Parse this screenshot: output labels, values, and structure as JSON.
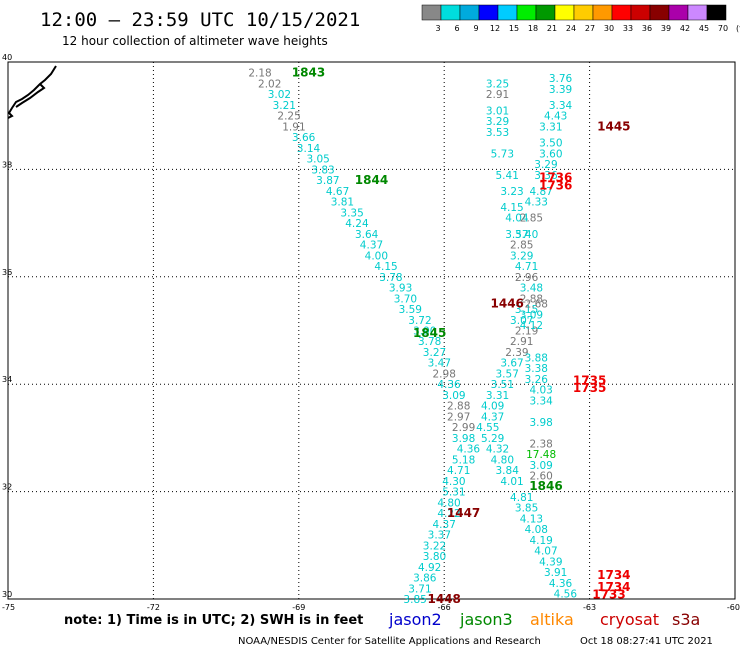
{
  "header": {
    "title": "12:00 — 23:59 UTC 10/15/2021",
    "subtitle": "12 hour collection of altimeter wave heights"
  },
  "footer": {
    "note": "note:  1) Time is in UTC; 2) SWH is in feet",
    "credit": "NOAA/NESDIS Center for Satellite Applications and Research",
    "timestamp": "Oct 18 08:27:41 UTC 2021",
    "satellites": [
      {
        "label": "jason2",
        "color": "#0000cc"
      },
      {
        "label": "jason3",
        "color": "#008800"
      },
      {
        "label": "altika",
        "color": "#ff8800"
      },
      {
        "label": "cryosat",
        "color": "#cc0000"
      },
      {
        "label": "s3a",
        "color": "#880000"
      }
    ]
  },
  "color_scale": {
    "labels": [
      "3",
      "6",
      "9",
      "12",
      "15",
      "18",
      "21",
      "24",
      "27",
      "30",
      "33",
      "36",
      "39",
      "42",
      "45",
      "70",
      "(ft)"
    ],
    "colors": [
      "#888888",
      "#00dddd",
      "#00aadd",
      "#0000ff",
      "#00ccff",
      "#00ee00",
      "#009900",
      "#ffff00",
      "#ffcc00",
      "#ff9900",
      "#ff0000",
      "#cc0000",
      "#880000",
      "#aa00aa",
      "#cc88ff",
      "#000000"
    ]
  },
  "chart_data": {
    "type": "scatter",
    "title": "12:00 — 23:59 UTC 10/15/2021",
    "subtitle": "12 hour collection of altimeter wave heights",
    "xlim": [
      -75,
      -60
    ],
    "ylim": [
      30,
      40
    ],
    "xticks": [
      "-75",
      "-72",
      "-69",
      "-66",
      "-63",
      "-60"
    ],
    "xtick_values": [
      -75,
      -72,
      -69,
      -66,
      -63,
      -60
    ],
    "yticks": [
      "30",
      "32",
      "34",
      "36",
      "38",
      "40"
    ],
    "ytick_values": [
      30,
      32,
      34,
      36,
      38,
      40
    ],
    "grid": true,
    "value_colors": {
      "low": "#777777",
      "mid": "#00cccc",
      "high": "#00bb00"
    },
    "passes": [
      {
        "label": "1843",
        "lon": -68.8,
        "lat": 39.8,
        "color": "#008800"
      },
      {
        "label": "1844",
        "lon": -67.5,
        "lat": 37.8,
        "color": "#008800"
      },
      {
        "label": "1845",
        "lon": -66.3,
        "lat": 34.95,
        "color": "#008800"
      },
      {
        "label": "1846",
        "lon": -63.9,
        "lat": 32.1,
        "color": "#008800"
      },
      {
        "label": "1445",
        "lon": -62.5,
        "lat": 38.8,
        "color": "#880000"
      },
      {
        "label": "1446",
        "lon": -64.7,
        "lat": 35.5,
        "color": "#880000"
      },
      {
        "label": "1447",
        "lon": -65.6,
        "lat": 31.6,
        "color": "#880000"
      },
      {
        "label": "1448",
        "lon": -66.0,
        "lat": 30.0,
        "color": "#880000"
      },
      {
        "label": "1736",
        "lon": -63.7,
        "lat": 37.85,
        "color": "#ee0000"
      },
      {
        "label": "1736",
        "lon": -63.7,
        "lat": 37.7,
        "color": "#ee0000"
      },
      {
        "label": "1735",
        "lon": -63.0,
        "lat": 34.07,
        "color": "#ee0000"
      },
      {
        "label": "1735",
        "lon": -63.0,
        "lat": 33.93,
        "color": "#ee0000"
      },
      {
        "label": "1734",
        "lon": -62.5,
        "lat": 30.45,
        "color": "#ee0000"
      },
      {
        "label": "1734",
        "lon": -62.5,
        "lat": 30.22,
        "color": "#ee0000"
      },
      {
        "label": "1733",
        "lon": -62.6,
        "lat": 30.08,
        "color": "#ee0000"
      }
    ],
    "series": [
      {
        "name": "jason3",
        "points": [
          {
            "lon": -69.8,
            "lat": 39.8,
            "v": "2.18"
          },
          {
            "lon": -69.6,
            "lat": 39.6,
            "v": "2.02"
          },
          {
            "lon": -69.4,
            "lat": 39.4,
            "v": "3.02"
          },
          {
            "lon": -69.3,
            "lat": 39.2,
            "v": "3.21"
          },
          {
            "lon": -69.2,
            "lat": 39.0,
            "v": "2.25"
          },
          {
            "lon": -69.1,
            "lat": 38.8,
            "v": "1.91"
          },
          {
            "lon": -68.9,
            "lat": 38.6,
            "v": "3.66"
          },
          {
            "lon": -68.8,
            "lat": 38.4,
            "v": "3.14"
          },
          {
            "lon": -68.6,
            "lat": 38.2,
            "v": "3.05"
          },
          {
            "lon": -68.5,
            "lat": 38.0,
            "v": "3.83"
          },
          {
            "lon": -68.4,
            "lat": 37.8,
            "v": "3.87"
          },
          {
            "lon": -68.2,
            "lat": 37.6,
            "v": "4.67"
          },
          {
            "lon": -68.1,
            "lat": 37.4,
            "v": "3.81"
          },
          {
            "lon": -67.9,
            "lat": 37.2,
            "v": "3.35"
          },
          {
            "lon": -67.8,
            "lat": 37.0,
            "v": "4.24"
          },
          {
            "lon": -67.6,
            "lat": 36.8,
            "v": "3.64"
          },
          {
            "lon": -67.5,
            "lat": 36.6,
            "v": "4.37"
          },
          {
            "lon": -67.4,
            "lat": 36.4,
            "v": "4.00"
          },
          {
            "lon": -67.2,
            "lat": 36.2,
            "v": "4.15"
          },
          {
            "lon": -67.1,
            "lat": 36.0,
            "v": "3.78"
          },
          {
            "lon": -66.9,
            "lat": 35.8,
            "v": "3.93"
          },
          {
            "lon": -66.8,
            "lat": 35.6,
            "v": "3.70"
          },
          {
            "lon": -66.7,
            "lat": 35.4,
            "v": "3.59"
          },
          {
            "lon": -66.5,
            "lat": 35.2,
            "v": "3.72"
          },
          {
            "lon": -66.4,
            "lat": 35.0,
            "v": "3.90"
          },
          {
            "lon": -66.3,
            "lat": 34.8,
            "v": "3.78"
          },
          {
            "lon": -66.2,
            "lat": 34.6,
            "v": "3.27"
          },
          {
            "lon": -66.1,
            "lat": 34.4,
            "v": "3.47"
          },
          {
            "lon": -66.0,
            "lat": 34.2,
            "v": "2.98"
          },
          {
            "lon": -65.9,
            "lat": 34.0,
            "v": "4.36"
          },
          {
            "lon": -65.8,
            "lat": 33.8,
            "v": "3.09"
          },
          {
            "lon": -65.7,
            "lat": 33.6,
            "v": "2.88"
          },
          {
            "lon": -65.7,
            "lat": 33.4,
            "v": "2.97"
          },
          {
            "lon": -65.6,
            "lat": 33.2,
            "v": "2.99"
          },
          {
            "lon": -65.6,
            "lat": 33.0,
            "v": "3.98"
          },
          {
            "lon": -65.5,
            "lat": 32.8,
            "v": "4.36"
          },
          {
            "lon": -65.6,
            "lat": 32.6,
            "v": "5.18"
          },
          {
            "lon": -65.7,
            "lat": 32.4,
            "v": "4.71"
          },
          {
            "lon": -65.8,
            "lat": 32.2,
            "v": "4.30"
          },
          {
            "lon": -65.8,
            "lat": 32.0,
            "v": "5.31"
          },
          {
            "lon": -65.9,
            "lat": 31.8,
            "v": "4.80"
          },
          {
            "lon": -65.9,
            "lat": 31.6,
            "v": "4.22"
          },
          {
            "lon": -66.0,
            "lat": 31.4,
            "v": "4.37"
          },
          {
            "lon": -66.1,
            "lat": 31.2,
            "v": "3.37"
          },
          {
            "lon": -66.2,
            "lat": 31.0,
            "v": "3.22"
          },
          {
            "lon": -66.2,
            "lat": 30.8,
            "v": "3.80"
          },
          {
            "lon": -66.3,
            "lat": 30.6,
            "v": "4.92"
          },
          {
            "lon": -66.4,
            "lat": 30.4,
            "v": "3.86"
          },
          {
            "lon": -66.5,
            "lat": 30.2,
            "v": "3.71"
          },
          {
            "lon": -66.6,
            "lat": 30.0,
            "v": "3.85"
          }
        ]
      },
      {
        "name": "s3a",
        "points": [
          {
            "lon": -64.9,
            "lat": 39.6,
            "v": "3.25"
          },
          {
            "lon": -64.9,
            "lat": 39.4,
            "v": "2.91"
          },
          {
            "lon": -64.9,
            "lat": 39.1,
            "v": "3.01"
          },
          {
            "lon": -64.9,
            "lat": 38.9,
            "v": "3.29"
          },
          {
            "lon": -64.9,
            "lat": 38.7,
            "v": "3.53"
          },
          {
            "lon": -64.8,
            "lat": 38.3,
            "v": "5.73"
          },
          {
            "lon": -64.7,
            "lat": 37.9,
            "v": "5.41"
          },
          {
            "lon": -64.6,
            "lat": 37.6,
            "v": "3.23"
          },
          {
            "lon": -64.6,
            "lat": 37.3,
            "v": "4.15"
          },
          {
            "lon": -64.5,
            "lat": 37.1,
            "v": "4.04"
          },
          {
            "lon": -64.5,
            "lat": 36.8,
            "v": "3.57"
          },
          {
            "lon": -64.4,
            "lat": 36.6,
            "v": "2.85"
          },
          {
            "lon": -64.4,
            "lat": 36.4,
            "v": "3.29"
          },
          {
            "lon": -64.3,
            "lat": 36.2,
            "v": "4.71"
          },
          {
            "lon": -64.3,
            "lat": 36.0,
            "v": "2.96"
          },
          {
            "lon": -64.2,
            "lat": 35.8,
            "v": "3.48"
          },
          {
            "lon": -64.2,
            "lat": 35.6,
            "v": "2.88"
          },
          {
            "lon": -64.3,
            "lat": 35.4,
            "v": "3.15"
          },
          {
            "lon": -64.4,
            "lat": 35.2,
            "v": "3.07"
          },
          {
            "lon": -64.3,
            "lat": 35.0,
            "v": "2.19"
          },
          {
            "lon": -64.4,
            "lat": 34.8,
            "v": "2.91"
          },
          {
            "lon": -64.5,
            "lat": 34.6,
            "v": "2.39"
          },
          {
            "lon": -64.6,
            "lat": 34.4,
            "v": "3.67"
          },
          {
            "lon": -64.7,
            "lat": 34.2,
            "v": "3.57"
          },
          {
            "lon": -64.8,
            "lat": 34.0,
            "v": "3.51"
          },
          {
            "lon": -64.9,
            "lat": 33.8,
            "v": "3.31"
          },
          {
            "lon": -65.0,
            "lat": 33.6,
            "v": "4.09"
          },
          {
            "lon": -65.0,
            "lat": 33.4,
            "v": "4.37"
          },
          {
            "lon": -65.1,
            "lat": 33.2,
            "v": "4.55"
          },
          {
            "lon": -65.0,
            "lat": 33.0,
            "v": "5.29"
          },
          {
            "lon": -64.9,
            "lat": 32.8,
            "v": "4.32"
          },
          {
            "lon": -64.8,
            "lat": 32.6,
            "v": "4.80"
          },
          {
            "lon": -64.7,
            "lat": 32.4,
            "v": "3.84"
          },
          {
            "lon": -64.6,
            "lat": 32.2,
            "v": "4.01"
          },
          {
            "lon": -64.4,
            "lat": 31.9,
            "v": "4.81"
          },
          {
            "lon": -64.3,
            "lat": 31.7,
            "v": "3.85"
          },
          {
            "lon": -64.2,
            "lat": 31.5,
            "v": "4.13"
          },
          {
            "lon": -64.1,
            "lat": 31.3,
            "v": "4.08"
          },
          {
            "lon": -64.0,
            "lat": 31.1,
            "v": "4.19"
          },
          {
            "lon": -63.9,
            "lat": 30.9,
            "v": "4.07"
          },
          {
            "lon": -63.8,
            "lat": 30.7,
            "v": "4.39"
          },
          {
            "lon": -63.7,
            "lat": 30.5,
            "v": "3.91"
          },
          {
            "lon": -63.6,
            "lat": 30.3,
            "v": "4.36"
          },
          {
            "lon": -63.5,
            "lat": 30.1,
            "v": "4.56"
          }
        ]
      },
      {
        "name": "cryosat",
        "points": [
          {
            "lon": -63.6,
            "lat": 39.7,
            "v": "3.76"
          },
          {
            "lon": -63.6,
            "lat": 39.5,
            "v": "3.39"
          },
          {
            "lon": -63.6,
            "lat": 39.2,
            "v": "3.34"
          },
          {
            "lon": -63.7,
            "lat": 39.0,
            "v": "4.43"
          },
          {
            "lon": -63.8,
            "lat": 38.8,
            "v": "3.31"
          },
          {
            "lon": -63.8,
            "lat": 38.5,
            "v": "3.50"
          },
          {
            "lon": -63.8,
            "lat": 38.3,
            "v": "3.60"
          },
          {
            "lon": -63.9,
            "lat": 38.1,
            "v": "3.29"
          },
          {
            "lon": -63.9,
            "lat": 37.9,
            "v": "3.36"
          },
          {
            "lon": -64.0,
            "lat": 37.6,
            "v": "4.87"
          },
          {
            "lon": -64.1,
            "lat": 37.4,
            "v": "4.33"
          },
          {
            "lon": -64.2,
            "lat": 37.1,
            "v": "2.85"
          },
          {
            "lon": -64.3,
            "lat": 36.8,
            "v": "3.40"
          },
          {
            "lon": -64.1,
            "lat": 35.5,
            "v": "2.68"
          },
          {
            "lon": -64.2,
            "lat": 35.3,
            "v": "3.09"
          },
          {
            "lon": -64.2,
            "lat": 35.1,
            "v": "4.12"
          },
          {
            "lon": -64.1,
            "lat": 34.5,
            "v": "3.88"
          },
          {
            "lon": -64.1,
            "lat": 34.3,
            "v": "3.38"
          },
          {
            "lon": -64.1,
            "lat": 34.1,
            "v": "3.26"
          },
          {
            "lon": -64.0,
            "lat": 33.9,
            "v": "4.03"
          },
          {
            "lon": -64.0,
            "lat": 33.7,
            "v": "3.34"
          },
          {
            "lon": -64.0,
            "lat": 33.3,
            "v": "3.98"
          },
          {
            "lon": -64.0,
            "lat": 32.9,
            "v": "2.38"
          },
          {
            "lon": -64.0,
            "lat": 32.7,
            "v": "17.48"
          },
          {
            "lon": -64.0,
            "lat": 32.5,
            "v": "3.09"
          },
          {
            "lon": -64.0,
            "lat": 32.3,
            "v": "2.60"
          }
        ]
      }
    ]
  }
}
